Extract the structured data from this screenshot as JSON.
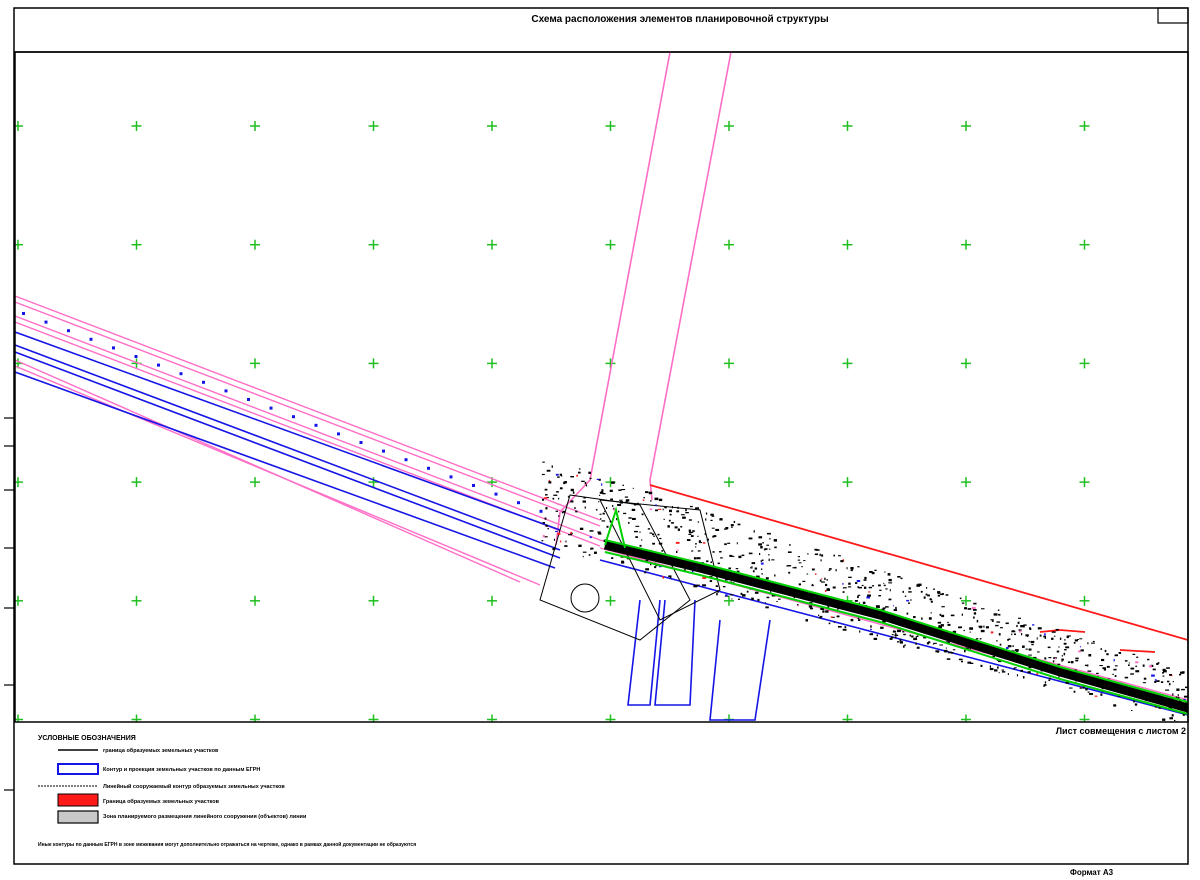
{
  "title": "Схема расположения элементов планировочной структуры",
  "map_sheet_note": "Лист совмещения с листом 2",
  "format": "Формат А3",
  "legend": {
    "heading": "УСЛОВНЫЕ ОБОЗНАЧЕНИЯ",
    "items": [
      {
        "symbol": "black-line",
        "label": "граница образуемых земельных участков"
      },
      {
        "symbol": "blue-rect",
        "label": "Контур и проекция земельных участков по данным ЕГРН"
      },
      {
        "symbol": "dashed-line",
        "label": "Линейный сооружаемый контур образуемых земельных участков"
      },
      {
        "symbol": "red-rect",
        "label": "Граница образуемых земельных участков"
      },
      {
        "symbol": "gray-rect",
        "label": "Зона планируемого размещения линейного сооружения (объектов) линии"
      }
    ],
    "note": "Иные контуры по данным ЕГРН в зоне межевания могут дополнительно отражаться на чертеже, однако в рамках данной документации не образуются"
  },
  "colors": {
    "grid": "#1fbf1f",
    "pink": "#ff6ec7",
    "blue": "#1515e6",
    "red": "#ff1a1a",
    "green": "#00d000",
    "frame": "#000000"
  }
}
